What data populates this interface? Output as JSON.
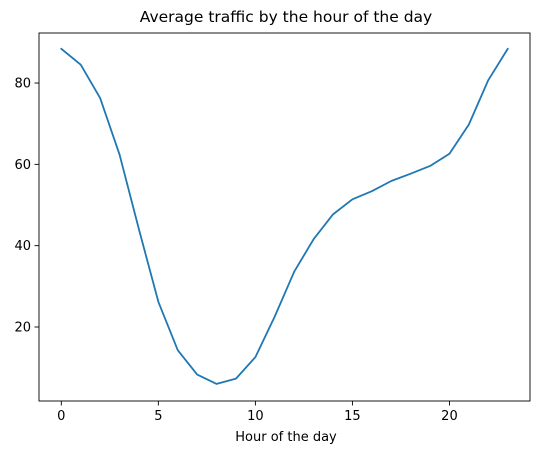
{
  "chart_data": {
    "type": "line",
    "title": "Average traffic by the hour of the day",
    "xlabel": "Hour of the day",
    "ylabel": "",
    "xlim": [
      -1.15,
      24.15
    ],
    "ylim": [
      1.8,
      92.3
    ],
    "xticks": [
      0,
      5,
      10,
      15,
      20
    ],
    "yticks": [
      20,
      40,
      60,
      80
    ],
    "grid": false,
    "line_color": "#1f77b4",
    "series": [
      {
        "x": [
          0,
          1,
          2,
          3,
          4,
          5,
          6,
          7,
          8,
          9,
          10,
          11,
          12,
          13,
          14,
          15,
          16,
          17,
          18,
          19,
          20,
          21,
          22,
          23
        ],
        "values": [
          88.4,
          84.5,
          76.3,
          62.4,
          44.0,
          26.2,
          14.3,
          8.3,
          6.0,
          7.3,
          12.6,
          22.6,
          33.6,
          41.6,
          47.7,
          51.4,
          53.4,
          55.9,
          57.7,
          59.6,
          62.6,
          69.8,
          80.7,
          88.4
        ]
      }
    ]
  }
}
